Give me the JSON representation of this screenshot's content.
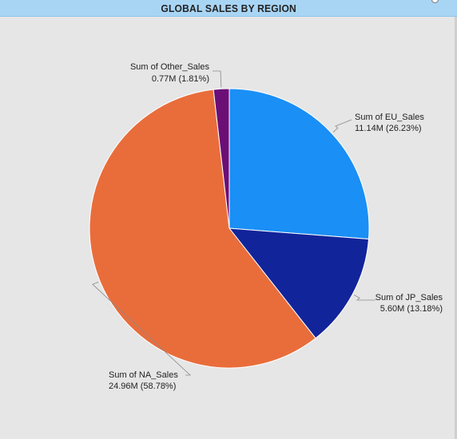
{
  "header": {
    "title": "GLOBAL SALES BY REGION"
  },
  "chart_data": {
    "type": "pie",
    "title": "GLOBAL SALES BY REGION",
    "start_angle_deg": 0,
    "direction": "clockwise",
    "slices": [
      {
        "key": "eu",
        "name": "Sum of EU_Sales",
        "value": 11.14,
        "value_label": "11.14M (26.23%)",
        "color": "#1a8ff5"
      },
      {
        "key": "jp",
        "name": "Sum of JP_Sales",
        "value": 5.6,
        "value_label": "5.60M (13.18%)",
        "color": "#12249a"
      },
      {
        "key": "na",
        "name": "Sum of NA_Sales",
        "value": 24.96,
        "value_label": "24.96M (58.78%)",
        "color": "#e96d3b"
      },
      {
        "key": "other",
        "name": "Sum of Other_Sales",
        "value": 0.77,
        "value_label": "0.77M (1.81%)",
        "color": "#6b0f77"
      }
    ]
  }
}
